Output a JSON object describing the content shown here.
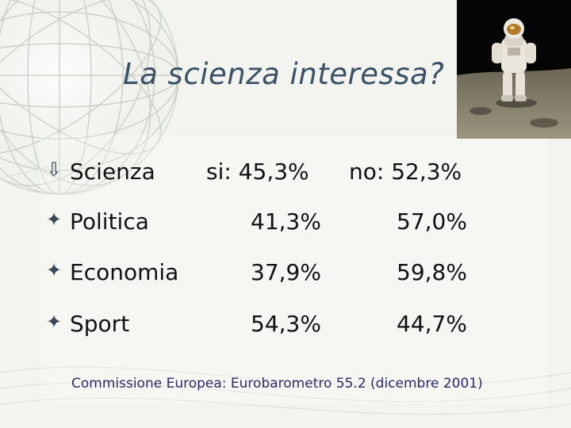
{
  "slide": {
    "title": "La scienza interessa?",
    "source": "Commissione Europea: Eurobarometro 55.2 (dicembre 2001)"
  },
  "rows": [
    {
      "label": "Scienza",
      "c1": "si: 45,3%",
      "c2": "no: 52,3%",
      "bullet": "⇩"
    },
    {
      "label": "Politica",
      "c1": "41,3%",
      "c2": "57,0%",
      "bullet": "✦"
    },
    {
      "label": "Economia",
      "c1": "37,9%",
      "c2": "59,8%",
      "bullet": "✦"
    },
    {
      "label": "Sport",
      "c1": "54,3%",
      "c2": "44,7%",
      "bullet": "✦"
    }
  ],
  "photo": {
    "subject": "astronaut-on-moon-image"
  }
}
